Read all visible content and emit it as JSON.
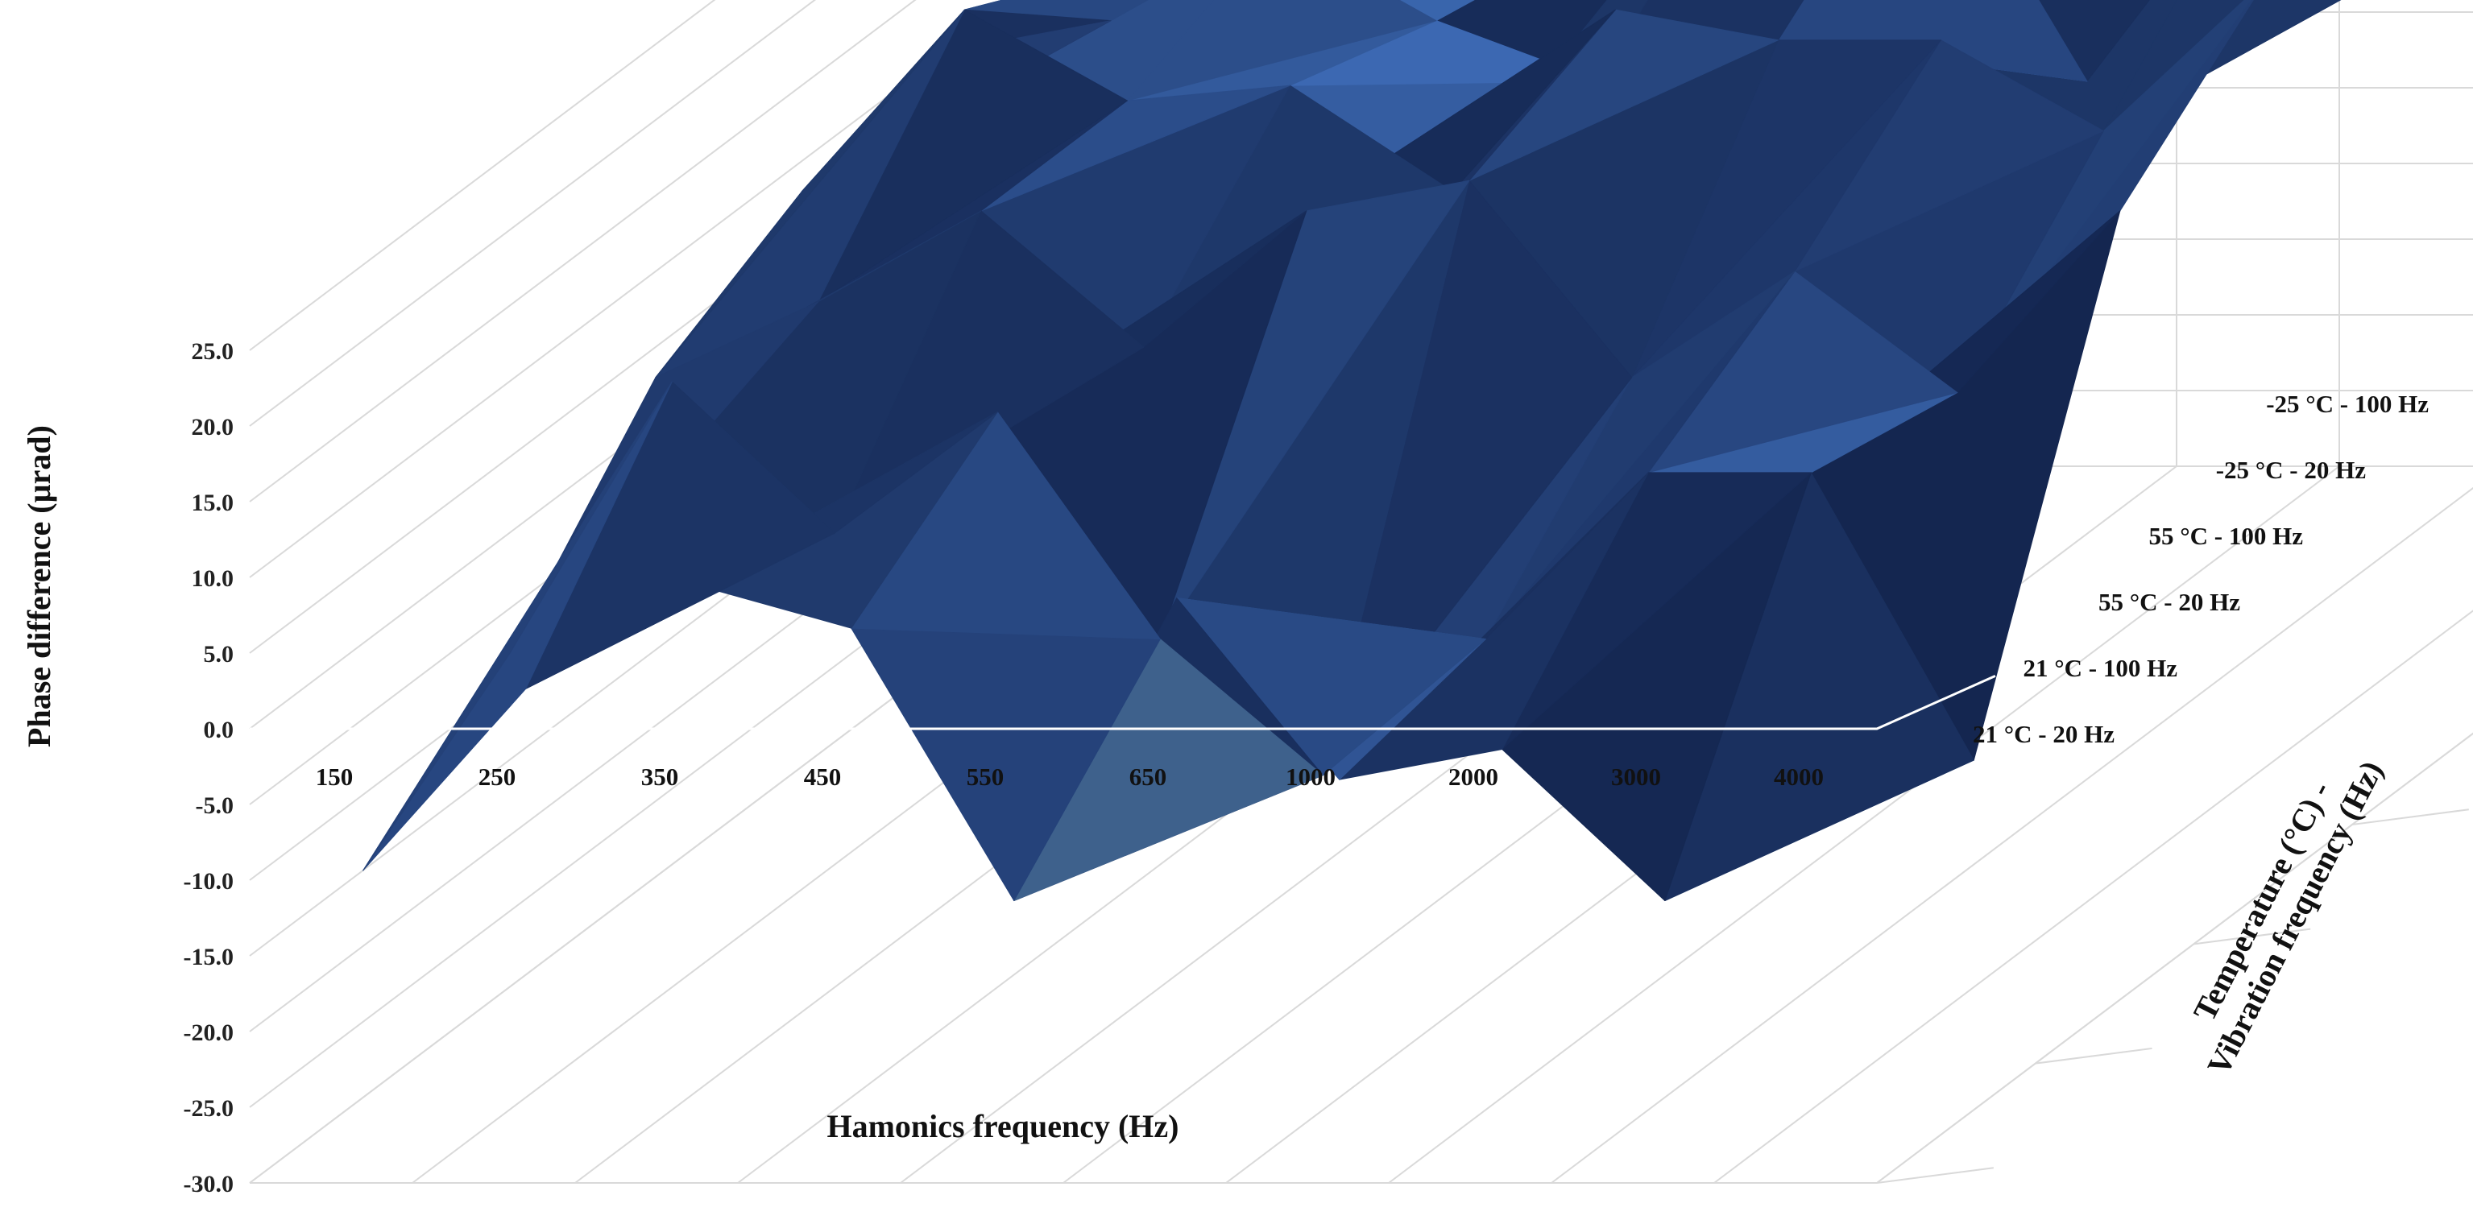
{
  "chart_data": {
    "type": "surface-3d",
    "title": "",
    "ylabel": "Phase difference (µrad)",
    "xlabel": "Hamonics frequency (Hz)",
    "zlabel": "Temperature (°C) -\nVibration frequency (Hz)",
    "ylim": [
      -30,
      25
    ],
    "y_ticks": [
      "25.0",
      "20.0",
      "15.0",
      "10.0",
      "5.0",
      "0.0",
      "-5.0",
      "-10.0",
      "-15.0",
      "-20.0",
      "-25.0",
      "-30.0"
    ],
    "y_tick_values": [
      25,
      20,
      15,
      10,
      5,
      0,
      -5,
      -10,
      -15,
      -20,
      -25,
      -30
    ],
    "categories": [
      "150",
      "250",
      "350",
      "450",
      "550",
      "650",
      "1000",
      "2000",
      "3000",
      "4000"
    ],
    "series": [
      {
        "name": "21 °C - 20 Hz",
        "values": [
          -13,
          -1,
          6,
          3,
          -15,
          5,
          -7,
          -5,
          -15,
          -8
        ]
      },
      {
        "name": "21 °C - 100 Hz",
        "values": [
          -6,
          12,
          2,
          10,
          -5,
          -14,
          -5,
          6,
          6,
          -13
        ]
      },
      {
        "name": "55 °C - 20 Hz",
        "values": [
          5,
          10,
          16,
          7,
          16,
          18,
          5,
          12,
          4,
          16
        ]
      },
      {
        "name": "55 °C - 100 Hz",
        "values": [
          10,
          22,
          16,
          17,
          10,
          22,
          20,
          20,
          14,
          24
        ]
      },
      {
        "name": "-25 °C - 20 Hz",
        "values": [
          12,
          14,
          20,
          14,
          10,
          28,
          28,
          10,
          24,
          18
        ]
      },
      {
        "name": "-25 °C - 100 Hz",
        "values": [
          14,
          20,
          24,
          12,
          26,
          27,
          16,
          22,
          28,
          12
        ]
      }
    ],
    "colors": {
      "base": "#2f58a8",
      "light": "#8fb6ff",
      "dark": "#15264a",
      "grid": "#d9d9d9",
      "zero_plane": "#ffffff"
    },
    "grid": true,
    "legend": "none"
  }
}
